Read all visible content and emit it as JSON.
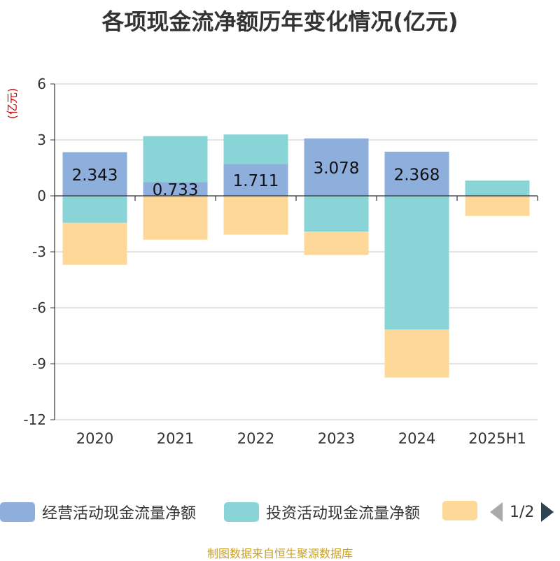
{
  "title": "各项现金流净额历年变化情况(亿元)",
  "unit_label": "(亿元)",
  "source": "制图数据来自恒生聚源数据库",
  "legend": {
    "page": "1/2"
  },
  "colors": {
    "operating": "#8eaedb",
    "investing": "#88d4d7",
    "financing": "#fed898",
    "axis": "#333333",
    "grid": "#c8c8c8",
    "unit": "#cc0000",
    "source": "#c9a227"
  },
  "chart_data": {
    "type": "bar",
    "stacked": true,
    "categories": [
      "2020",
      "2021",
      "2022",
      "2023",
      "2024",
      "2025H1"
    ],
    "ylim": [
      -12,
      6
    ],
    "yticks": [
      6,
      3,
      0,
      -3,
      -6,
      -9,
      -12
    ],
    "grid": true,
    "legend_position": "bottom",
    "series": [
      {
        "name": "经营活动现金流量净额",
        "color": "#8eaedb",
        "values": [
          2.343,
          0.733,
          1.711,
          3.078,
          2.368,
          0.0
        ],
        "labels": [
          "2.343",
          "0.733",
          "1.711",
          "3.078",
          "2.368",
          ""
        ]
      },
      {
        "name": "投资活动现金流量净额",
        "color": "#88d4d7",
        "values": [
          -1.45,
          2.47,
          1.58,
          -1.92,
          -7.17,
          0.82
        ]
      },
      {
        "name": "",
        "color": "#fed898",
        "values": [
          -2.25,
          -2.35,
          -2.08,
          -1.25,
          -2.57,
          -1.08
        ]
      }
    ]
  }
}
